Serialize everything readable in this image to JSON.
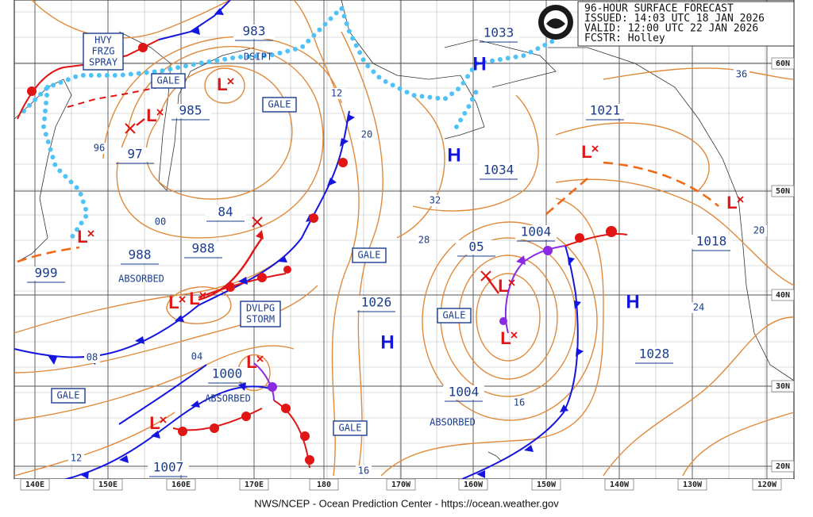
{
  "header": {
    "lines": [
      "96-HOUR SURFACE FORECAST",
      "ISSUED: 14:03 UTC 18 JAN 2026",
      "VALID:  12:00 UTC 22 JAN 2026",
      "FCSTR:  Holley"
    ]
  },
  "footer": "NWS/NCEP - Ocean Prediction Center - https://ocean.weather.gov",
  "longitude_labels": [
    "140E",
    "150E",
    "160E",
    "170E",
    "180",
    "170W",
    "160W",
    "150W",
    "140W",
    "130W",
    "120W"
  ],
  "latitude_labels": [
    "60N",
    "50N",
    "40N",
    "30N",
    "20N"
  ],
  "pressure_labels": [
    "983",
    "1033",
    "985",
    "97",
    "1021",
    "1034",
    "84",
    "988",
    "988",
    "999",
    "05",
    "1004",
    "1018",
    "1026",
    "1028",
    "1000",
    "1004",
    "1007"
  ],
  "isobar_labels": [
    "12",
    "20",
    "96",
    "00",
    "32",
    "28",
    "36",
    "20",
    "24",
    "08",
    "04",
    "16",
    "12",
    "16"
  ],
  "warnings": [
    [
      "HVY",
      "FRZG",
      "SPRAY"
    ],
    [
      "GALE"
    ],
    [
      "GALE"
    ],
    [
      "GALE"
    ],
    [
      "GALE"
    ],
    [
      "DVLPG",
      "STORM"
    ],
    [
      "GALE"
    ],
    [
      "GALE"
    ]
  ],
  "notes": [
    "DSIPT",
    "ABSORBED",
    "ABSORBED",
    "ABSORBED"
  ],
  "highs": [
    "H",
    "H",
    "H",
    "H"
  ],
  "lows": [
    "L",
    "L",
    "L",
    "L",
    "L",
    "L",
    "L",
    "L",
    "L",
    "L",
    "L"
  ]
}
